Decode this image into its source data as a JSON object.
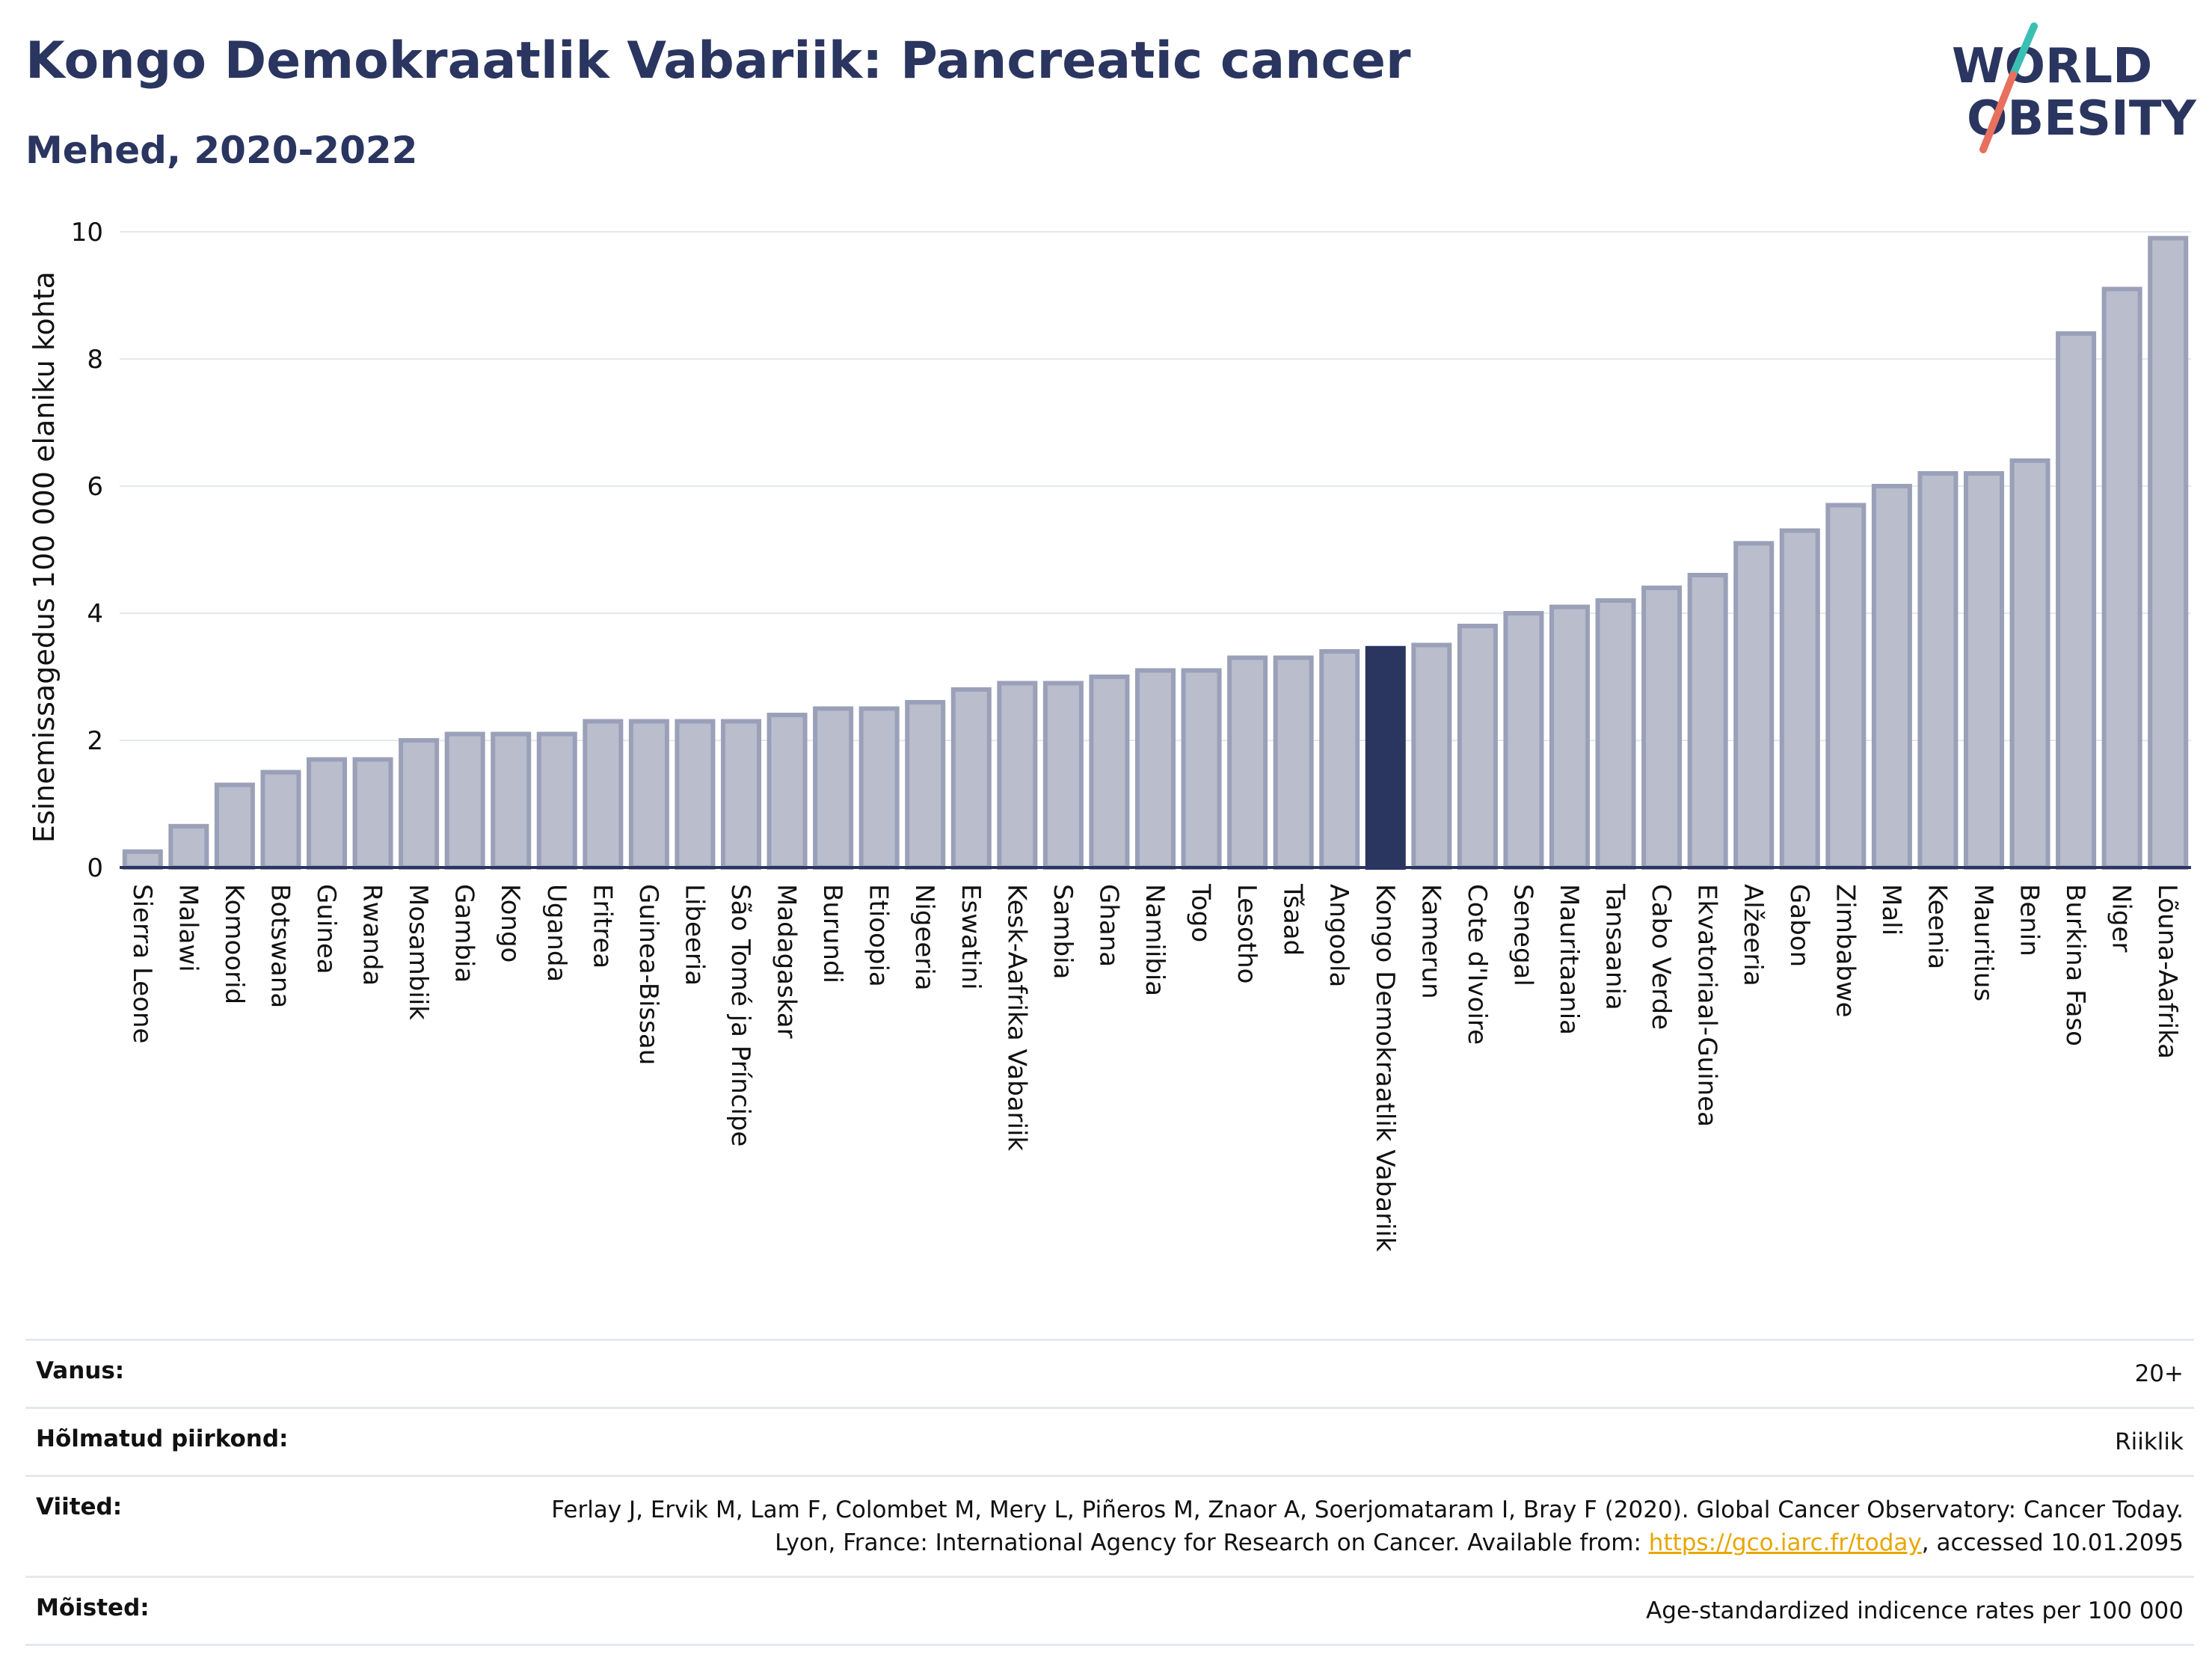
{
  "title": "Kongo Demokraatlik Vabariik: Pancreatic cancer",
  "subtitle": "Mehed, 2020-2022",
  "logo": {
    "line1": "WORLD",
    "line2": "OBESITY",
    "accent_teal": "#3bbfb3",
    "accent_coral": "#e8705f",
    "color": "#2a3560"
  },
  "colors": {
    "bar": "#b9bdcc",
    "bar_stroke": "#9aa0b8",
    "highlight": "#2a3560"
  },
  "chart_data": {
    "type": "bar",
    "title": "Kongo Demokraatlik Vabariik: Pancreatic cancer",
    "subtitle": "Mehed, 2020-2022",
    "ylabel": "Esinemissagedus 100 000 elaniku kohta",
    "xlabel": "",
    "ylim": [
      0,
      10
    ],
    "yticks": [
      0,
      2,
      4,
      6,
      8,
      10
    ],
    "grid": true,
    "highlight": "Kongo Demokraatlik Vabariik",
    "categories": [
      "Sierra Leone",
      "Malawi",
      "Komoorid",
      "Botswana",
      "Guinea",
      "Rwanda",
      "Mosambiik",
      "Gambia",
      "Kongo",
      "Uganda",
      "Eritrea",
      "Guinea-Bissau",
      "Libeeria",
      "São Tomé ja Príncipe",
      "Madagaskar",
      "Burundi",
      "Etioopia",
      "Nigeeria",
      "Eswatini",
      "Kesk-Aafrika Vabariik",
      "Sambia",
      "Ghana",
      "Namiibia",
      "Togo",
      "Lesotho",
      "Tšaad",
      "Angoola",
      "Kongo Demokraatlik Vabariik",
      "Kamerun",
      "Cote d'Ivoire",
      "Senegal",
      "Mauritaania",
      "Tansaania",
      "Cabo Verde",
      "Ekvatoriaal-Guinea",
      "Alžeeria",
      "Gabon",
      "Zimbabwe",
      "Mali",
      "Keenia",
      "Mauritius",
      "Benin",
      "Burkina Faso",
      "Niger",
      "Lõuna-Aafrika"
    ],
    "values": [
      0.25,
      0.65,
      1.3,
      1.5,
      1.7,
      1.7,
      2.0,
      2.1,
      2.1,
      2.1,
      2.3,
      2.3,
      2.3,
      2.3,
      2.4,
      2.5,
      2.5,
      2.6,
      2.8,
      2.9,
      2.9,
      3.0,
      3.1,
      3.1,
      3.3,
      3.3,
      3.4,
      3.45,
      3.5,
      3.8,
      4.0,
      4.1,
      4.2,
      4.4,
      4.6,
      5.1,
      5.3,
      5.7,
      6.0,
      6.2,
      6.2,
      6.4,
      8.4,
      9.1,
      9.9
    ]
  },
  "meta": [
    {
      "key": "Vanus:",
      "value": "20+"
    },
    {
      "key": "Hõlmatud piirkond:",
      "value": "Riiklik"
    },
    {
      "key": "Viited:",
      "value_pre": "Ferlay J, Ervik M, Lam F, Colombet M, Mery L, Piñeros M, Znaor A, Soerjomataram I, Bray F (2020). Global Cancer Observatory: Cancer Today. Lyon, France: International Agency for Research on Cancer. Available from: ",
      "link": "https://gco.iarc.fr/today",
      "value_post": ", accessed 10.01.2095"
    },
    {
      "key": "Mõisted:",
      "value": "Age-standardized indicence rates per 100 000"
    }
  ]
}
